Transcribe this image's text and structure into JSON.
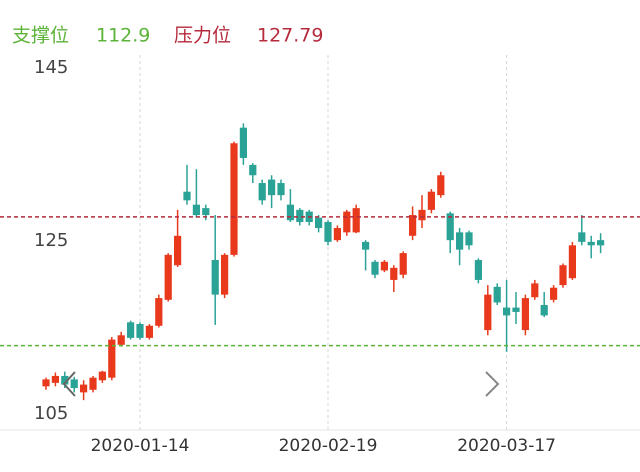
{
  "chart_data": {
    "type": "candlestick",
    "support": {
      "label": "支撑位",
      "value": 112.9,
      "color": "#5cb338"
    },
    "resistance": {
      "label": "压力位",
      "value": 127.79,
      "color": "#b52a3c"
    },
    "up_color": "#e8391d",
    "down_color": "#2aa296",
    "ylim": [
      105,
      145
    ],
    "yticks": [
      105,
      125,
      145
    ],
    "categories": [
      null,
      null,
      null,
      null,
      null,
      null,
      null,
      null,
      null,
      null,
      "2020-01-14",
      null,
      null,
      null,
      null,
      null,
      null,
      null,
      null,
      null,
      null,
      null,
      null,
      null,
      null,
      null,
      null,
      null,
      null,
      null,
      "2020-02-19",
      null,
      null,
      null,
      null,
      null,
      null,
      null,
      null,
      null,
      null,
      null,
      null,
      null,
      null,
      null,
      null,
      null,
      null,
      "2020-03-17",
      null,
      null,
      null,
      null,
      null,
      null,
      null,
      null,
      null,
      null
    ],
    "open": [
      108.2,
      108.6,
      109.4,
      109.0,
      107.5,
      107.8,
      108.9,
      109.2,
      113.0,
      115.6,
      115.4,
      113.8,
      115.2,
      118.2,
      122.2,
      130.7,
      129.2,
      128.8,
      122.8,
      118.8,
      123.4,
      138.1,
      133.8,
      131.7,
      132.1,
      131.7,
      129.2,
      128.6,
      128.4,
      127.7,
      127.2,
      125.1,
      126.0,
      126.0,
      124.9,
      122.6,
      121.6,
      120.5,
      121.1,
      125.6,
      127.4,
      128.6,
      130.3,
      128.2,
      126.0,
      126.0,
      122.8,
      114.7,
      119.7,
      117.3,
      117.3,
      114.7,
      118.5,
      117.6,
      118.2,
      119.9,
      120.7,
      126.0,
      124.9,
      125.1
    ],
    "high": [
      109.2,
      109.8,
      109.9,
      109.3,
      108.9,
      109.4,
      110.0,
      113.9,
      114.5,
      115.8,
      115.6,
      115.4,
      118.8,
      123.6,
      128.6,
      133.8,
      133.3,
      129.2,
      128.0,
      123.6,
      136.5,
      138.6,
      134.0,
      132.1,
      132.6,
      132.1,
      131.0,
      128.8,
      128.6,
      128.0,
      127.4,
      126.8,
      128.6,
      129.2,
      125.1,
      122.8,
      122.8,
      122.2,
      123.8,
      129.0,
      130.3,
      131.0,
      133.0,
      128.4,
      126.5,
      126.2,
      123.0,
      119.9,
      120.1,
      120.5,
      119.1,
      118.8,
      120.5,
      119.1,
      119.9,
      122.4,
      124.9,
      128.0,
      125.6,
      125.9
    ],
    "low": [
      107.8,
      108.2,
      108.0,
      107.5,
      106.6,
      107.5,
      108.6,
      108.9,
      112.8,
      113.6,
      113.6,
      113.6,
      115.0,
      118.0,
      122.0,
      129.2,
      127.7,
      127.4,
      115.3,
      118.4,
      123.2,
      133.8,
      131.7,
      129.2,
      128.8,
      129.7,
      127.2,
      126.8,
      126.8,
      126.0,
      124.5,
      124.9,
      125.6,
      125.9,
      121.6,
      120.7,
      121.4,
      119.1,
      120.7,
      125.1,
      126.5,
      128.2,
      130.0,
      123.6,
      122.2,
      124.0,
      120.1,
      114.1,
      117.6,
      112.2,
      115.4,
      114.1,
      118.2,
      116.2,
      117.9,
      119.6,
      120.5,
      124.5,
      123.0,
      123.6
    ],
    "close": [
      109.0,
      109.4,
      108.4,
      108.0,
      108.4,
      109.2,
      109.9,
      113.6,
      114.1,
      113.8,
      113.8,
      115.2,
      118.4,
      123.4,
      125.6,
      129.7,
      128.0,
      128.0,
      118.8,
      123.4,
      136.3,
      134.6,
      132.6,
      129.7,
      130.3,
      130.3,
      127.4,
      127.2,
      127.2,
      126.5,
      124.9,
      126.5,
      128.4,
      128.8,
      124.0,
      121.1,
      122.6,
      121.9,
      123.6,
      128.0,
      128.6,
      130.7,
      132.6,
      125.1,
      124.0,
      124.5,
      120.5,
      118.8,
      117.9,
      116.4,
      116.8,
      118.4,
      120.1,
      116.4,
      119.6,
      122.2,
      124.5,
      124.9,
      124.5,
      124.5
    ]
  }
}
